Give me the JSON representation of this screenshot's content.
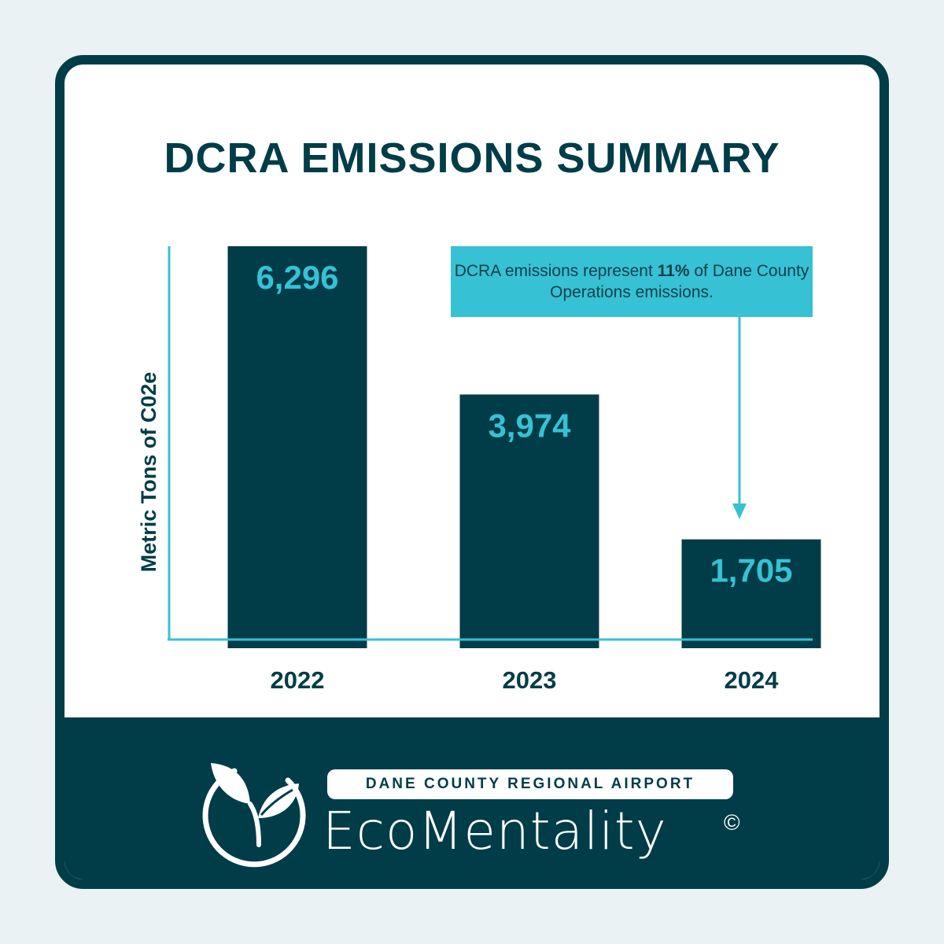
{
  "title": "DCRA EMISSIONS SUMMARY",
  "chart_data": {
    "type": "bar",
    "title": "DCRA EMISSIONS SUMMARY",
    "categories": [
      "2022",
      "2023",
      "2024"
    ],
    "values": [
      6296,
      3974,
      1705
    ],
    "value_labels": [
      "6,296",
      "3,974",
      "1,705"
    ],
    "xlabel": "",
    "ylabel": "Metric Tons of C02e",
    "ylim": [
      0,
      6296
    ],
    "grid": false,
    "annotation": {
      "text_before": "DCRA emissions represent ",
      "text_bold": "11%",
      "text_after": " of Dane County Operations emissions.",
      "target_category": "2024"
    }
  },
  "colors": {
    "bar": "#003d48",
    "value_label": "#37c1d4",
    "axis": "#37c1d4",
    "callout": "#37c1d4",
    "text_dark": "#003d48"
  },
  "footer": {
    "brand_label": "DANE COUNTY REGIONAL AIRPORT",
    "brand_name": "EcoMentality",
    "copyright_symbol": "©",
    "logo_icon": "leaf-sprout-icon"
  }
}
